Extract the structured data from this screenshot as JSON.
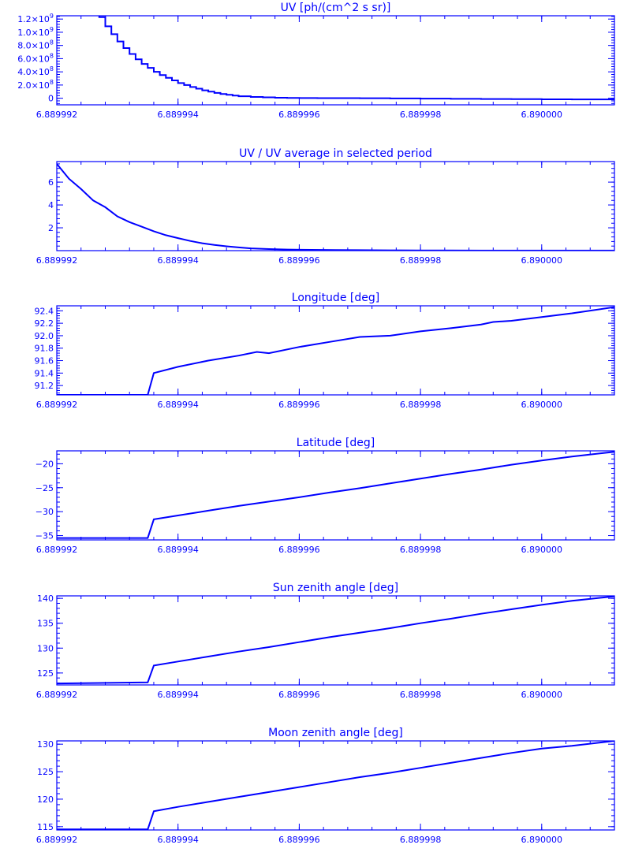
{
  "colors": {
    "ink": "#0000ff",
    "background": "#ffffff"
  },
  "chart_data": [
    {
      "type": "line",
      "line_style": "step",
      "title": "UV [ph/(cm^2 s sr)]",
      "xlabel": "",
      "ylabel": "",
      "xlim": [
        6.889992,
        6.8900012
      ],
      "ylim": [
        -100000000,
        1250000000
      ],
      "xticks": [
        6.889992,
        6.889994,
        6.889996,
        6.889998,
        6.89
      ],
      "xtick_labels": [
        "6.889992",
        "6.889994",
        "6.889996",
        "6.889998",
        "6.890000"
      ],
      "yticks": [
        0,
        200000000,
        400000000,
        600000000,
        800000000,
        1000000000,
        1200000000
      ],
      "ytick_labels": [
        {
          "mantissa": "0",
          "exp": ""
        },
        {
          "mantissa": "2.0×10",
          "exp": "8"
        },
        {
          "mantissa": "4.0×10",
          "exp": "8"
        },
        {
          "mantissa": "6.0×10",
          "exp": "8"
        },
        {
          "mantissa": "8.0×10",
          "exp": "8"
        },
        {
          "mantissa": "1.0×10",
          "exp": "9"
        },
        {
          "mantissa": "1.2×10",
          "exp": "9"
        }
      ],
      "series": [
        {
          "x": [
            6.889992,
            6.8899927,
            6.8899928,
            6.8899929,
            6.889993,
            6.8899931,
            6.8899932,
            6.8899933,
            6.8899934,
            6.8899935,
            6.8899936,
            6.8899937,
            6.8899938,
            6.8899939,
            6.889994,
            6.8899941,
            6.8899942,
            6.8899943,
            6.8899944,
            6.8899945,
            6.8899946,
            6.8899947,
            6.8899948,
            6.8899949,
            6.889995,
            6.8899952,
            6.8899954,
            6.8899956,
            6.8899958,
            6.889996,
            6.8899963,
            6.8899966,
            6.889997,
            6.8899975,
            6.889998,
            6.8899985,
            6.889999,
            6.8899995,
            6.89,
            6.8900005,
            6.8900012
          ],
          "y": [
            1300000000,
            1230000000,
            1090000000,
            970000000,
            860000000,
            760000000,
            670000000,
            590000000,
            520000000,
            460000000,
            400000000,
            350000000,
            310000000,
            270000000,
            230000000,
            200000000,
            170000000,
            145000000,
            120000000,
            100000000,
            80000000,
            65000000,
            52000000,
            40000000,
            30000000,
            20000000,
            13000000,
            8000000,
            5000000,
            3000000,
            2000000,
            1000000,
            0,
            -3000000,
            -6000000,
            -9000000,
            -12000000,
            -14000000,
            -16000000,
            -18000000,
            -20000000
          ]
        }
      ]
    },
    {
      "type": "line",
      "title": "UV / UV average in selected period",
      "xlabel": "",
      "ylabel": "",
      "xlim": [
        6.889992,
        6.8900012
      ],
      "ylim": [
        0,
        7.8
      ],
      "xticks": [
        6.889992,
        6.889994,
        6.889996,
        6.889998,
        6.89
      ],
      "xtick_labels": [
        "6.889992",
        "6.889994",
        "6.889996",
        "6.889998",
        "6.890000"
      ],
      "yticks": [
        2,
        4,
        6
      ],
      "ytick_labels": [
        {
          "mantissa": "2",
          "exp": ""
        },
        {
          "mantissa": "4",
          "exp": ""
        },
        {
          "mantissa": "6",
          "exp": ""
        }
      ],
      "series": [
        {
          "x": [
            6.889992,
            6.8899922,
            6.8899924,
            6.8899926,
            6.8899928,
            6.889993,
            6.8899932,
            6.8899934,
            6.8899936,
            6.8899938,
            6.889994,
            6.8899942,
            6.8899944,
            6.8899946,
            6.8899948,
            6.889995,
            6.8899952,
            6.8899955,
            6.8899958,
            6.8899962,
            6.8899966,
            6.889997,
            6.8899975,
            6.889998,
            6.8899985,
            6.889999,
            6.8899995,
            6.89,
            6.8900005,
            6.8900012
          ],
          "y": [
            7.6,
            6.3,
            5.4,
            4.4,
            3.8,
            3.0,
            2.5,
            2.1,
            1.7,
            1.35,
            1.1,
            0.85,
            0.65,
            0.5,
            0.38,
            0.28,
            0.2,
            0.14,
            0.1,
            0.07,
            0.05,
            0.04,
            0.03,
            0.02,
            0.02,
            0.01,
            0.01,
            0.01,
            0.01,
            0.01
          ]
        }
      ]
    },
    {
      "type": "line",
      "title": "Longitude [deg]",
      "xlabel": "",
      "ylabel": "",
      "xlim": [
        6.889992,
        6.8900012
      ],
      "ylim": [
        91.05,
        92.48
      ],
      "xticks": [
        6.889992,
        6.889994,
        6.889996,
        6.889998,
        6.89
      ],
      "xtick_labels": [
        "6.889992",
        "6.889994",
        "6.889996",
        "6.889998",
        "6.890000"
      ],
      "yticks": [
        91.2,
        91.4,
        91.6,
        91.8,
        92.0,
        92.2,
        92.4
      ],
      "ytick_labels": [
        {
          "mantissa": "91.2",
          "exp": ""
        },
        {
          "mantissa": "91.4",
          "exp": ""
        },
        {
          "mantissa": "91.6",
          "exp": ""
        },
        {
          "mantissa": "91.8",
          "exp": ""
        },
        {
          "mantissa": "92.0",
          "exp": ""
        },
        {
          "mantissa": "92.2",
          "exp": ""
        },
        {
          "mantissa": "92.4",
          "exp": ""
        }
      ],
      "series": [
        {
          "x": [
            6.889992,
            6.8899935,
            6.8899936,
            6.889994,
            6.8899945,
            6.889995,
            6.8899953,
            6.8899955,
            6.889996,
            6.8899965,
            6.889997,
            6.8899975,
            6.889998,
            6.8899985,
            6.889999,
            6.8899992,
            6.8899995,
            6.89,
            6.8900005,
            6.8900012
          ],
          "y": [
            91.05,
            91.05,
            91.4,
            91.5,
            91.6,
            91.68,
            91.74,
            91.72,
            91.82,
            91.9,
            91.98,
            92.0,
            92.07,
            92.12,
            92.18,
            92.22,
            92.24,
            92.3,
            92.36,
            92.46
          ]
        }
      ]
    },
    {
      "type": "line",
      "title": "Latitude [deg]",
      "xlabel": "",
      "ylabel": "",
      "xlim": [
        6.889992,
        6.8900012
      ],
      "ylim": [
        -35.9,
        -17.3
      ],
      "xticks": [
        6.889992,
        6.889994,
        6.889996,
        6.889998,
        6.89
      ],
      "xtick_labels": [
        "6.889992",
        "6.889994",
        "6.889996",
        "6.889998",
        "6.890000"
      ],
      "yticks": [
        -35,
        -30,
        -25,
        -20
      ],
      "ytick_labels": [
        {
          "mantissa": "−35",
          "exp": ""
        },
        {
          "mantissa": "−30",
          "exp": ""
        },
        {
          "mantissa": "−25",
          "exp": ""
        },
        {
          "mantissa": "−20",
          "exp": ""
        }
      ],
      "series": [
        {
          "x": [
            6.889992,
            6.8899935,
            6.8899936,
            6.889994,
            6.8899945,
            6.889995,
            6.8899955,
            6.889996,
            6.8899965,
            6.889997,
            6.8899975,
            6.889998,
            6.8899985,
            6.889999,
            6.8899995,
            6.89,
            6.8900005,
            6.8900012
          ],
          "y": [
            -35.5,
            -35.5,
            -31.6,
            -30.8,
            -29.8,
            -28.8,
            -27.9,
            -27.0,
            -26.0,
            -25.1,
            -24.1,
            -23.1,
            -22.1,
            -21.2,
            -20.2,
            -19.3,
            -18.5,
            -17.5
          ]
        }
      ]
    },
    {
      "type": "line",
      "title": "Sun zenith angle [deg]",
      "xlabel": "",
      "ylabel": "",
      "xlim": [
        6.889992,
        6.8900012
      ],
      "ylim": [
        122.6,
        140.5
      ],
      "xticks": [
        6.889992,
        6.889994,
        6.889996,
        6.889998,
        6.89
      ],
      "xtick_labels": [
        "6.889992",
        "6.889994",
        "6.889996",
        "6.889998",
        "6.890000"
      ],
      "yticks": [
        125,
        130,
        135,
        140
      ],
      "ytick_labels": [
        {
          "mantissa": "125",
          "exp": ""
        },
        {
          "mantissa": "130",
          "exp": ""
        },
        {
          "mantissa": "135",
          "exp": ""
        },
        {
          "mantissa": "140",
          "exp": ""
        }
      ],
      "series": [
        {
          "x": [
            6.889992,
            6.8899935,
            6.8899936,
            6.889994,
            6.8899945,
            6.889995,
            6.8899955,
            6.889996,
            6.8899965,
            6.889997,
            6.8899975,
            6.889998,
            6.8899985,
            6.889999,
            6.8899995,
            6.89,
            6.8900005,
            6.8900012
          ],
          "y": [
            122.9,
            123.1,
            126.5,
            127.3,
            128.3,
            129.3,
            130.2,
            131.2,
            132.2,
            133.1,
            134.0,
            135.0,
            135.9,
            136.9,
            137.8,
            138.7,
            139.5,
            140.4
          ]
        }
      ]
    },
    {
      "type": "line",
      "title": "Moon zenith angle [deg]",
      "xlabel": "",
      "ylabel": "",
      "xlim": [
        6.889992,
        6.8900012
      ],
      "ylim": [
        114.4,
        130.6
      ],
      "xticks": [
        6.889992,
        6.889994,
        6.889996,
        6.889998,
        6.89
      ],
      "xtick_labels": [
        "6.889992",
        "6.889994",
        "6.889996",
        "6.889998",
        "6.890000"
      ],
      "yticks": [
        115,
        120,
        125,
        130
      ],
      "ytick_labels": [
        {
          "mantissa": "115",
          "exp": ""
        },
        {
          "mantissa": "120",
          "exp": ""
        },
        {
          "mantissa": "125",
          "exp": ""
        },
        {
          "mantissa": "130",
          "exp": ""
        }
      ],
      "series": [
        {
          "x": [
            6.889992,
            6.8899935,
            6.8899936,
            6.889994,
            6.8899945,
            6.889995,
            6.8899955,
            6.889996,
            6.8899965,
            6.889997,
            6.8899975,
            6.889998,
            6.8899985,
            6.889999,
            6.8899995,
            6.89,
            6.8900005,
            6.8900012
          ],
          "y": [
            114.5,
            114.5,
            117.8,
            118.6,
            119.5,
            120.4,
            121.3,
            122.2,
            123.1,
            124.0,
            124.8,
            125.7,
            126.6,
            127.5,
            128.4,
            129.2,
            129.7,
            130.6
          ]
        }
      ]
    }
  ]
}
